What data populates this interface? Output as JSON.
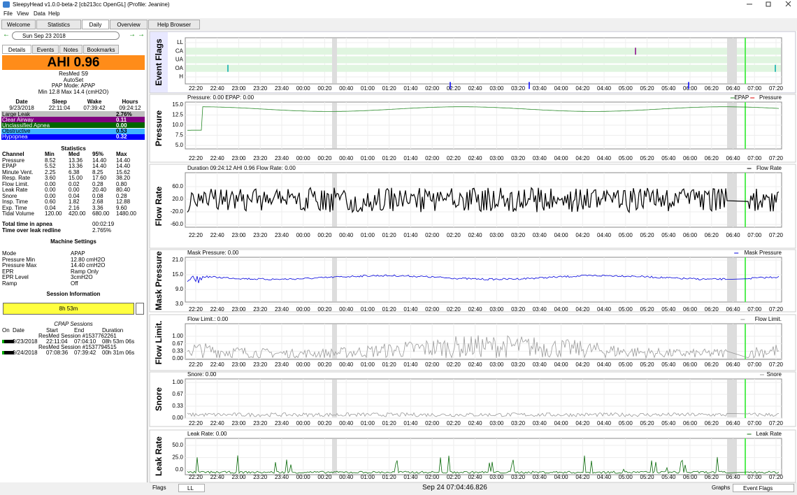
{
  "window_title": "SleepyHead v1.0.0-beta-2 [cb213cc OpenGL] (Profile: Jeanine)",
  "menu": [
    "File",
    "View",
    "Data",
    "Help"
  ],
  "tabs": [
    "Welcome",
    "Statistics",
    "Daily",
    "Overview",
    "Help Browser"
  ],
  "date": "Sun Sep 23 2018",
  "side_tabs": [
    "Details",
    "Events",
    "Notes",
    "Bookmarks"
  ],
  "ahi": "AHI 0.96",
  "device": [
    "ResMed S9",
    "AutoSet",
    "PAP Mode: APAP",
    "Min 12.8 Max 14.4 (cmH2O)"
  ],
  "summary": {
    "header": [
      "Date",
      "Sleep",
      "Wake",
      "Hours"
    ],
    "row": [
      "9/23/2018",
      "22:11:04",
      "07:39:42",
      "09:24:12"
    ]
  },
  "events": [
    [
      "Large Leak",
      "2.76%"
    ],
    [
      "Clear Airway",
      "0.11"
    ],
    [
      "Unclassified Apnea",
      "0.00"
    ],
    [
      "Obstructive",
      "0.53"
    ],
    [
      "Hypopnea",
      "0.32"
    ]
  ],
  "statistics": {
    "title": "Statistics",
    "header": [
      "Channel",
      "Min",
      "Med",
      "95%",
      "Max"
    ],
    "rows": [
      [
        "Pressure",
        "8.52",
        "13.36",
        "14.40",
        "14.40"
      ],
      [
        "EPAP",
        "5.52",
        "13.36",
        "14.40",
        "14.40"
      ],
      [
        "Minute Vent.",
        "2.25",
        "6.38",
        "8.25",
        "15.62"
      ],
      [
        "Resp. Rate",
        "3.60",
        "15.00",
        "17.60",
        "38.20"
      ],
      [
        "Flow Limit.",
        "0.00",
        "0.02",
        "0.28",
        "0.80"
      ],
      [
        "Leak Rate",
        "0.00",
        "0.00",
        "20.40",
        "80.40"
      ],
      [
        "Snore",
        "0.00",
        "0.04",
        "0.08",
        "0.28"
      ],
      [
        "Insp. Time",
        "0.60",
        "1.82",
        "2.68",
        "12.88"
      ],
      [
        "Exp. Time",
        "0.04",
        "2.16",
        "3.36",
        "9.60"
      ],
      [
        "Tidal Volume",
        "120.00",
        "420.00",
        "680.00",
        "1480.00"
      ]
    ]
  },
  "totals": [
    [
      "Total time in apnea",
      "00:02:19"
    ],
    [
      "Time over leak redline",
      "2.765%"
    ]
  ],
  "machine_settings": {
    "title": "Machine Settings",
    "rows": [
      [
        "Mode",
        "APAP"
      ],
      [
        "Pressure Min",
        "12.80 cmH2O"
      ],
      [
        "Pressure Max",
        "14.40 cmH2O"
      ],
      [
        "EPR",
        "Ramp Only"
      ],
      [
        "EPR Level",
        "3cmH2O"
      ],
      [
        "Ramp",
        "Off"
      ]
    ]
  },
  "session_info": {
    "title": "Session Information",
    "bar": "8h 53m",
    "sessions_title": "CPAP Sessions",
    "header": [
      "On",
      "Date",
      "Start",
      "End",
      "Duration"
    ],
    "sessions": [
      {
        "name": "ResMed Session #1537762261",
        "date": "9/23/2018",
        "start": "22:11:04",
        "end": "07:04:10",
        "duration": "08h 53m 06s"
      },
      {
        "name": "ResMed Session #1537794515",
        "date": "9/24/2018",
        "start": "07:08:36",
        "end": "07:39:42",
        "duration": "00h 31m 06s"
      }
    ]
  },
  "time_ticks": [
    "22:20",
    "22:40",
    "23:00",
    "23:20",
    "23:40",
    "00:00",
    "00:20",
    "00:40",
    "01:00",
    "01:20",
    "01:40",
    "02:00",
    "02:20",
    "02:40",
    "03:00",
    "03:20",
    "03:40",
    "04:00",
    "04:20",
    "04:40",
    "05:00",
    "05:20",
    "05:40",
    "06:00",
    "06:20",
    "06:40",
    "07:00",
    "07:20"
  ],
  "graphs": [
    {
      "title": "Event Flags",
      "yticks": [
        "LL",
        "CA",
        "UA",
        "OA",
        "H"
      ]
    },
    {
      "title": "Pressure",
      "header": "Pressure: 0.00 EPAP: 0.00",
      "legend": [
        "EPAP",
        "Pressure"
      ],
      "yticks": [
        "15.0",
        "12.5",
        "10.0",
        "7.5",
        "5.0"
      ]
    },
    {
      "title": "Flow Rate",
      "header": "Duration 09:24:12 AHI 0.96 Flow Rate: 0.00",
      "legend": [
        "Flow Rate"
      ],
      "yticks": [
        "60.0",
        "20.0",
        "-20.0",
        "-60.0"
      ]
    },
    {
      "title": "Mask Pressure",
      "header": "Mask Pressure: 0.00",
      "legend": [
        "Mask Pressure"
      ],
      "yticks": [
        "21.0",
        "15.0",
        "9.0",
        "3.0"
      ]
    },
    {
      "title": "Flow Limit.",
      "header": "Flow Limit.: 0.00",
      "legend": [
        "Flow Limit."
      ],
      "yticks": [
        "1.00",
        "0.67",
        "0.33",
        "0.00"
      ]
    },
    {
      "title": "Snore",
      "header": "Snore: 0.00",
      "legend": [
        "Snore"
      ],
      "yticks": [
        "1.00",
        "0.67",
        "0.33",
        "0.00"
      ]
    },
    {
      "title": "Leak Rate",
      "header": "Leak Rate: 0.00",
      "legend": [
        "Leak Rate"
      ],
      "yticks": [
        "50.0",
        "25.0",
        "0.0"
      ]
    }
  ],
  "bottom": {
    "flags": "Flags",
    "flag_select": "LL",
    "time": "Sep 24 07:04:46.826",
    "graphs": "Graphs",
    "graph_select": "Event Flags"
  }
}
